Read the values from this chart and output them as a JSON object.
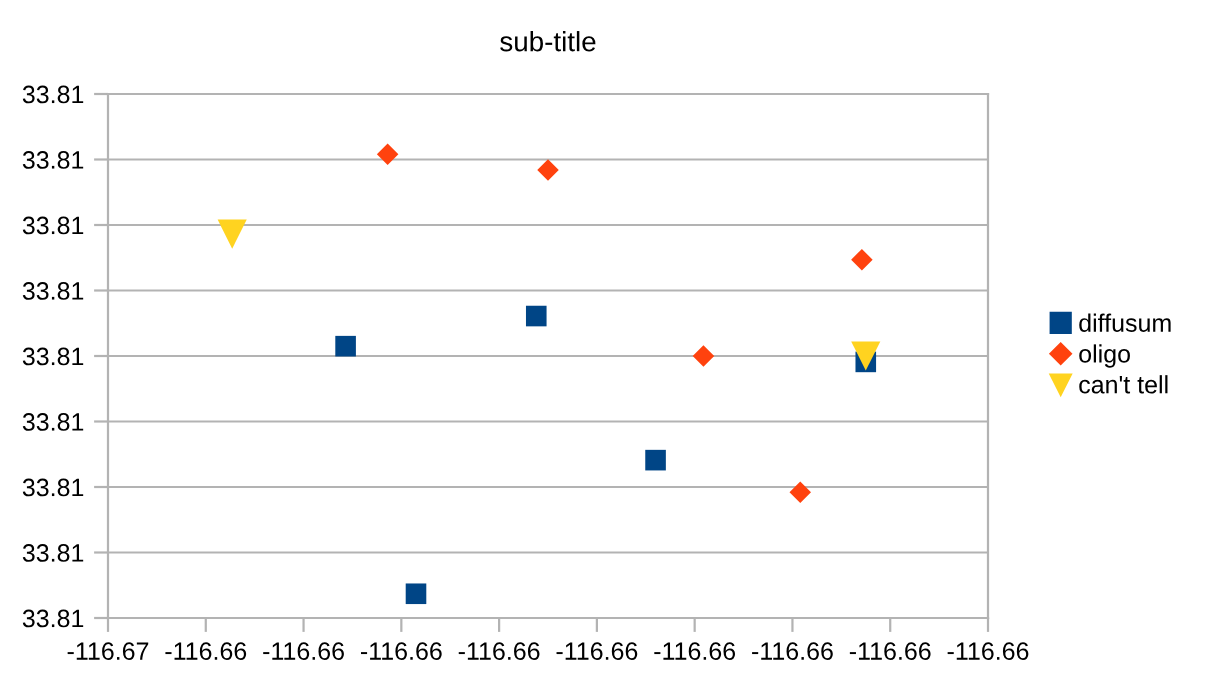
{
  "chart_data": {
    "type": "scatter",
    "title": "sub-title",
    "xlim": [
      -116.6655,
      -116.6565
    ],
    "xticks": [
      {
        "value": -116.6655,
        "label": "-116.67"
      },
      {
        "value": -116.6645,
        "label": "-116.66"
      },
      {
        "value": -116.6635,
        "label": "-116.66"
      },
      {
        "value": -116.6625,
        "label": "-116.66"
      },
      {
        "value": -116.6615,
        "label": "-116.66"
      },
      {
        "value": -116.6605,
        "label": "-116.66"
      },
      {
        "value": -116.6595,
        "label": "-116.66"
      },
      {
        "value": -116.6585,
        "label": "-116.66"
      },
      {
        "value": -116.6575,
        "label": "-116.66"
      },
      {
        "value": -116.6565,
        "label": "-116.66"
      }
    ],
    "ylim": [
      33.806,
      33.814
    ],
    "yticks": [
      {
        "value": 33.806,
        "label": "33.81"
      },
      {
        "value": 33.807,
        "label": "33.81"
      },
      {
        "value": 33.808,
        "label": "33.81"
      },
      {
        "value": 33.809,
        "label": "33.81"
      },
      {
        "value": 33.81,
        "label": "33.81"
      },
      {
        "value": 33.811,
        "label": "33.81"
      },
      {
        "value": 33.812,
        "label": "33.81"
      },
      {
        "value": 33.813,
        "label": "33.81"
      },
      {
        "value": 33.814,
        "label": "33.81"
      }
    ],
    "grid": "y",
    "legend": "right",
    "series": [
      {
        "name": "diffusum",
        "color": "#004586",
        "marker": "square",
        "x": [
          -116.66307,
          -116.66235,
          -116.66112,
          -116.6599,
          -116.65775
        ],
        "values": [
          33.81015,
          33.80637,
          33.81061,
          33.80841,
          33.80991
        ]
      },
      {
        "name": "oligo",
        "color": "#ff420e",
        "marker": "diamond",
        "x": [
          -116.66264,
          -116.661,
          -116.65941,
          -116.65842,
          -116.65779
        ],
        "values": [
          33.81308,
          33.81284,
          33.81,
          33.80792,
          33.81147
        ]
      },
      {
        "name": "can't tell",
        "color": "#ffd320",
        "marker": "triangle",
        "x": [
          -116.66423,
          -116.65775
        ],
        "values": [
          33.81186,
          33.81
        ]
      }
    ]
  }
}
